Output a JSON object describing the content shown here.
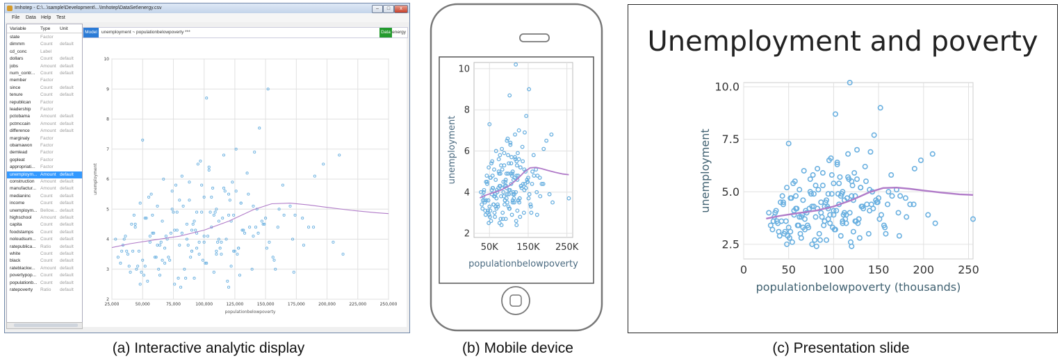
{
  "captions": {
    "a": "(a) Interactive analytic display",
    "b": "(b) Mobile device",
    "c": "(c) Presentation slide"
  },
  "window": {
    "title": "Imhotep - C:\\...\\sample\\Development\\...\\Imhotep\\DataSet\\energy.csv",
    "menu": [
      "File",
      "Data",
      "Help",
      "Test"
    ],
    "buttons": {
      "minimize": "–",
      "maximize": "□",
      "close": "x"
    },
    "formula": {
      "model_label": "Model",
      "text": "unemployment ~ populationbelowpoverty ***",
      "data_label": "Data",
      "dataset": "energy"
    },
    "variables_header": {
      "name": "Variable",
      "type": "Type",
      "unit": "Unit"
    },
    "variables": [
      [
        "state",
        "Factor",
        ""
      ],
      [
        "dimmm",
        "Count",
        "default"
      ],
      [
        "cd_conc",
        "Label",
        ""
      ],
      [
        "dollars",
        "Count",
        "default"
      ],
      [
        "jobs",
        "Amount",
        "default"
      ],
      [
        "num_contr...",
        "Count",
        "default"
      ],
      [
        "member",
        "Factor",
        ""
      ],
      [
        "since",
        "Count",
        "default"
      ],
      [
        "tenure",
        "Count",
        "default"
      ],
      [
        "republican",
        "Factor",
        ""
      ],
      [
        "leadership",
        "Factor",
        ""
      ],
      [
        "pctobama",
        "Amount",
        "default"
      ],
      [
        "pctmccain",
        "Amount",
        "default"
      ],
      [
        "difference",
        "Amount",
        "default"
      ],
      [
        "marginaly",
        "Factor",
        ""
      ],
      [
        "obamawon",
        "Factor",
        ""
      ],
      [
        "demlead",
        "Factor",
        ""
      ],
      [
        "gopleat",
        "Factor",
        ""
      ],
      [
        "appropriati...",
        "Factor",
        ""
      ],
      [
        "unemploym...",
        "Amount",
        "default"
      ],
      [
        "construction",
        "Amount",
        "default"
      ],
      [
        "manufactur...",
        "Amount",
        "default"
      ],
      [
        "medianinc",
        "Count",
        "default"
      ],
      [
        "income",
        "Count",
        "default"
      ],
      [
        "unemploym...",
        "Bellow...",
        "default"
      ],
      [
        "highschool",
        "Amount",
        "default"
      ],
      [
        "capita",
        "Count",
        "default"
      ],
      [
        "foodstamps",
        "Count",
        "default"
      ],
      [
        "noloudsum...",
        "Count",
        "default"
      ],
      [
        "ratepublica...",
        "Ratio",
        "default"
      ],
      [
        "white",
        "Count",
        "default"
      ],
      [
        "black",
        "Count",
        "default"
      ],
      [
        "rateblackw...",
        "Amount",
        "default"
      ],
      [
        "povertypop...",
        "Count",
        "default"
      ],
      [
        "populationb...",
        "Count",
        "default"
      ],
      [
        "ratepoverty",
        "Ratio",
        "default"
      ]
    ],
    "selected_variable_index": 19
  },
  "chart_data": [
    {
      "type": "scatter",
      "panel": "a",
      "title": "",
      "xlabel": "populationbelowpoverty",
      "ylabel": "unemployment",
      "xlim": [
        25000,
        250000
      ],
      "ylim": [
        2,
        10
      ],
      "xticks": [
        25000,
        50000,
        75000,
        100000,
        125000,
        150000,
        175000,
        200000,
        225000,
        250000
      ],
      "xtick_labels": [
        "25,000",
        "50,000",
        "75,000",
        "100,000",
        "125,000",
        "150,000",
        "175,000",
        "200,000",
        "225,000",
        "250,000"
      ],
      "yticks": [
        2,
        3,
        4,
        5,
        6,
        7,
        8,
        9,
        10
      ],
      "ytick_labels": [
        "2",
        "3",
        "4",
        "5",
        "6",
        "7",
        "8",
        "9",
        "10"
      ],
      "grid": true,
      "point_color": "#6ab0e0",
      "smooth_color": "#b07ac8"
    },
    {
      "type": "scatter",
      "panel": "b",
      "title": "",
      "xlabel": "populationbelowpoverty",
      "ylabel": "unemployment",
      "xlim": [
        10000,
        265000
      ],
      "ylim": [
        1.8,
        10.3
      ],
      "xticks": [
        50000,
        150000,
        250000
      ],
      "xtick_labels": [
        "50K",
        "150K",
        "250K"
      ],
      "yticks": [
        2,
        4,
        6,
        8,
        10
      ],
      "ytick_labels": [
        "2",
        "4",
        "6",
        "8",
        "10"
      ],
      "grid": true,
      "point_color": "#6ab0e0",
      "smooth_color": "#b07ac8"
    },
    {
      "type": "scatter",
      "panel": "c",
      "title": "Unemployment and poverty",
      "xlabel": "populationbelowpoverty (thousands)",
      "ylabel": "unemployment",
      "xlim": [
        0,
        255
      ],
      "ylim": [
        1.8,
        10.2
      ],
      "xticks": [
        0,
        50,
        100,
        150,
        200,
        250
      ],
      "xtick_labels": [
        "0",
        "50",
        "100",
        "150",
        "200",
        "250"
      ],
      "yticks": [
        2.5,
        5.0,
        7.5,
        10.0
      ],
      "ytick_labels": [
        "2.5",
        "5.0",
        "7.5",
        "10.0"
      ],
      "grid": true,
      "point_color": "#6ab0e0",
      "smooth_color": "#b07ac8"
    }
  ],
  "shared_data": {
    "x_thousands": [
      32,
      34,
      36,
      38,
      40,
      42,
      44,
      46,
      48,
      50,
      52,
      54,
      56,
      58,
      60,
      62,
      64,
      66,
      68,
      70,
      72,
      74,
      76,
      78,
      80,
      82,
      84,
      86,
      88,
      90,
      92,
      94,
      96,
      98,
      100,
      102,
      104,
      106,
      108,
      110,
      112,
      114,
      116,
      118,
      120,
      122,
      124,
      126,
      128,
      130,
      35,
      39,
      43,
      47,
      51,
      55,
      59,
      63,
      67,
      71,
      75,
      79,
      83,
      87,
      91,
      95,
      99,
      103,
      107,
      111,
      115,
      119,
      123,
      127,
      131,
      135,
      139,
      143,
      147,
      151,
      33,
      41,
      49,
      57,
      65,
      73,
      81,
      89,
      97,
      105,
      113,
      121,
      129,
      137,
      145,
      153,
      161,
      45,
      53,
      61,
      69,
      77,
      85,
      93,
      101,
      109,
      117,
      125,
      133,
      141,
      149,
      157,
      165,
      173,
      181,
      189,
      197,
      205,
      213,
      255,
      28,
      30,
      37,
      44,
      52,
      58,
      66,
      74,
      82,
      90,
      98,
      106,
      114,
      122,
      130,
      140,
      150,
      170,
      185,
      210,
      48,
      62,
      76,
      88,
      96,
      104,
      112,
      120,
      128,
      136,
      144,
      152,
      160,
      56,
      68,
      80,
      92,
      100,
      108,
      116,
      124,
      132,
      140,
      148,
      156,
      164,
      172,
      180,
      50,
      64,
      78,
      94,
      110,
      126,
      142,
      158,
      174,
      190,
      90,
      100,
      110,
      120,
      86,
      94,
      102,
      118
    ],
    "y": [
      3.2,
      3.8,
      4.1,
      3.5,
      2.9,
      3.6,
      4.4,
      3.1,
      5.2,
      3.3,
      4.7,
      2.6,
      3.9,
      4.2,
      3.4,
      5.1,
      2.8,
      4.6,
      3.7,
      4.0,
      3.3,
      5.6,
      2.5,
      4.3,
      3.8,
      6.1,
      3.0,
      4.5,
      5.3,
      3.6,
      2.7,
      4.9,
      3.9,
      5.8,
      4.1,
      3.2,
      6.3,
      4.4,
      2.9,
      5.0,
      4.6,
      3.5,
      6.8,
      4.0,
      5.5,
      3.1,
      4.8,
      7.0,
      3.7,
      5.2,
      4.0,
      3.1,
      4.8,
      3.6,
      2.8,
      5.4,
      4.2,
      3.0,
      6.0,
      3.4,
      4.9,
      2.7,
      5.1,
      3.8,
      4.5,
      6.5,
      3.3,
      4.1,
      5.7,
      3.9,
      4.7,
      2.6,
      5.9,
      3.5,
      4.3,
      6.2,
      3.0,
      5.0,
      4.6,
      3.7,
      3.6,
      4.5,
      2.9,
      5.5,
      3.9,
      4.2,
      2.4,
      3.4,
      6.6,
      4.9,
      3.7,
      5.3,
      2.8,
      4.4,
      7.7,
      3.9,
      5.0,
      3.0,
      4.7,
      3.4,
      4.1,
      5.8,
      2.7,
      4.3,
      3.2,
      4.9,
      5.6,
      3.6,
      4.2,
      6.9,
      4.5,
      3.3,
      4.8,
      2.9,
      3.8,
      4.4,
      6.5,
      3.9,
      3.5,
      3.7,
      4.0,
      3.4,
      3.6,
      4.5,
      3.1,
      4.8,
      3.3,
      5.0,
      4.2,
      3.6,
      4.9,
      5.4,
      3.9,
      4.6,
      5.2,
      4.1,
      4.7,
      5.1,
      4.4,
      6.8,
      2.5,
      3.8,
      4.3,
      5.9,
      3.5,
      6.4,
      4.0,
      4.8,
      3.7,
      5.5,
      4.2,
      9.0,
      4.4,
      4.1,
      3.2,
      5.3,
      4.6,
      3.9,
      4.8,
      5.7,
      3.6,
      4.3,
      5.1,
      4.5,
      3.4,
      5.8,
      4.0,
      4.7,
      7.3,
      3.8,
      4.9,
      4.2,
      3.6,
      5.6,
      4.4,
      3.0,
      4.8,
      6.1,
      4.3,
      5.4,
      3.5,
      2.4,
      4.0,
      3.7,
      8.7,
      10.2
    ],
    "smooth_x": [
      25,
      40,
      60,
      80,
      100,
      120,
      140,
      155,
      170,
      185,
      200,
      220,
      240,
      255
    ],
    "smooth_y": [
      3.72,
      3.85,
      3.98,
      4.1,
      4.3,
      4.6,
      4.98,
      5.18,
      5.2,
      5.14,
      5.06,
      4.96,
      4.88,
      4.85
    ]
  },
  "slide": {
    "title": "Unemployment and poverty"
  }
}
